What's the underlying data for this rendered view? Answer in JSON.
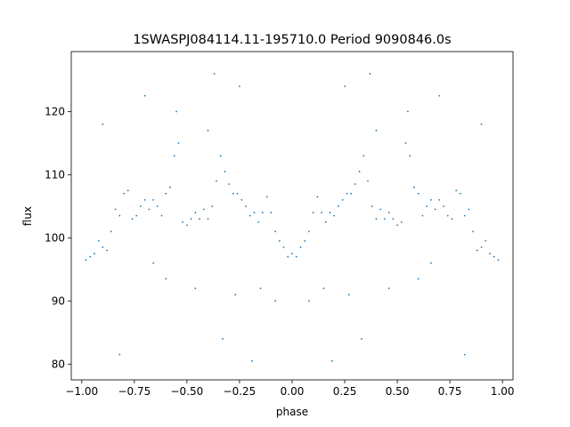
{
  "chart_data": {
    "type": "scatter",
    "title": "1SWASPJ084114.11-195710.0 Period 9090846.0s",
    "xlabel": "phase",
    "ylabel": "flux",
    "xlim": [
      -1.05,
      1.05
    ],
    "ylim": [
      77.5,
      129.5
    ],
    "xticks": [
      -1.0,
      -0.75,
      -0.5,
      -0.25,
      0.0,
      0.25,
      0.5,
      0.75,
      1.0
    ],
    "xtick_labels": [
      "−1.00",
      "−0.75",
      "−0.50",
      "−0.25",
      "0.00",
      "0.25",
      "0.50",
      "0.75",
      "1.00"
    ],
    "yticks": [
      80,
      90,
      100,
      110,
      120
    ],
    "ytick_labels": [
      "80",
      "90",
      "100",
      "110",
      "120"
    ],
    "grid": false,
    "marker_color": "#1f77b4",
    "series": [
      {
        "symmetric_about_zero_phase": true,
        "points": [
          [
            0.0,
            97.5
          ],
          [
            0.02,
            97.0
          ],
          [
            0.04,
            98.5
          ],
          [
            0.06,
            99.5
          ],
          [
            0.08,
            101.0
          ],
          [
            0.1,
            104.0
          ],
          [
            0.12,
            106.5
          ],
          [
            0.14,
            104.0
          ],
          [
            0.16,
            102.5
          ],
          [
            0.18,
            104.0
          ],
          [
            0.2,
            103.5
          ],
          [
            0.22,
            105.0
          ],
          [
            0.24,
            106.0
          ],
          [
            0.26,
            107.0
          ],
          [
            0.28,
            107.0
          ],
          [
            0.3,
            108.5
          ],
          [
            0.32,
            110.5
          ],
          [
            0.34,
            113.0
          ],
          [
            0.36,
            109.0
          ],
          [
            0.38,
            105.0
          ],
          [
            0.4,
            103.0
          ],
          [
            0.42,
            104.5
          ],
          [
            0.44,
            103.0
          ],
          [
            0.46,
            104.0
          ],
          [
            0.48,
            103.0
          ],
          [
            0.5,
            102.0
          ],
          [
            0.52,
            102.5
          ],
          [
            0.54,
            115.0
          ],
          [
            0.56,
            113.0
          ],
          [
            0.58,
            108.0
          ],
          [
            0.6,
            107.0
          ],
          [
            0.62,
            103.5
          ],
          [
            0.64,
            105.0
          ],
          [
            0.66,
            106.0
          ],
          [
            0.68,
            104.5
          ],
          [
            0.7,
            106.0
          ],
          [
            0.72,
            105.0
          ],
          [
            0.74,
            103.5
          ],
          [
            0.76,
            103.0
          ],
          [
            0.78,
            107.5
          ],
          [
            0.8,
            107.0
          ],
          [
            0.82,
            103.5
          ],
          [
            0.84,
            104.5
          ],
          [
            0.86,
            101.0
          ],
          [
            0.88,
            98.0
          ],
          [
            0.9,
            98.5
          ],
          [
            0.92,
            99.5
          ],
          [
            0.94,
            97.5
          ],
          [
            0.96,
            97.0
          ],
          [
            0.98,
            96.5
          ],
          [
            0.19,
            80.5
          ],
          [
            0.33,
            84.0
          ],
          [
            0.46,
            92.0
          ],
          [
            0.6,
            93.5
          ],
          [
            0.82,
            81.5
          ],
          [
            0.55,
            120.0
          ],
          [
            0.37,
            126.0
          ],
          [
            0.25,
            124.0
          ],
          [
            0.7,
            122.5
          ],
          [
            0.9,
            118.0
          ],
          [
            0.15,
            92.0
          ],
          [
            0.27,
            91.0
          ],
          [
            0.66,
            96.0
          ],
          [
            0.4,
            117.0
          ],
          [
            0.08,
            90.0
          ]
        ]
      }
    ]
  }
}
